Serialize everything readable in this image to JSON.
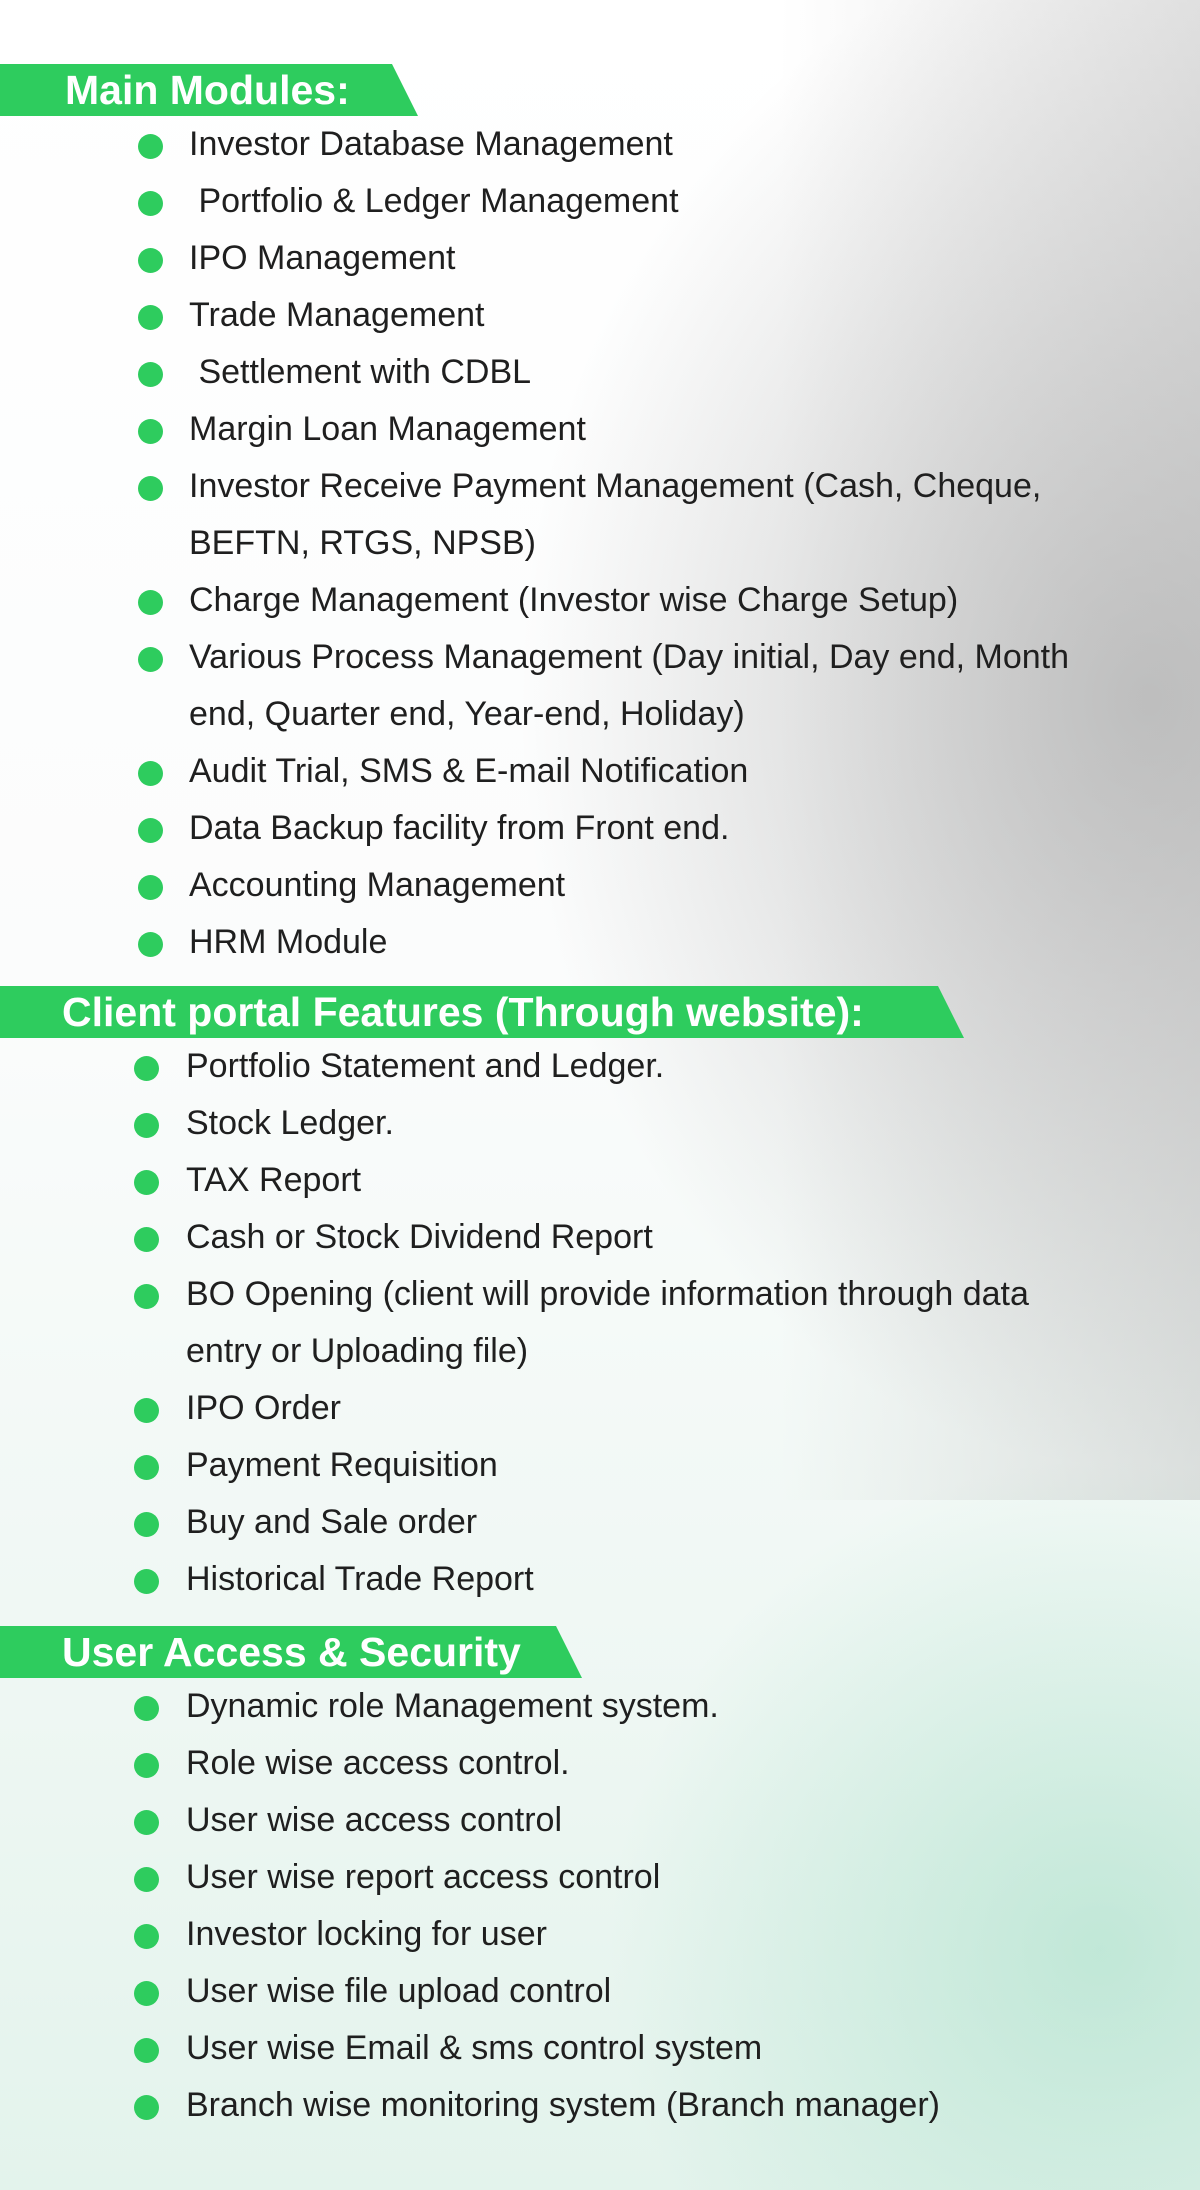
{
  "main_modules": {
    "heading": "Main Modules:",
    "items": [
      "Investor Database Management",
      " Portfolio & Ledger Management",
      "IPO Management",
      "Trade Management",
      " Settlement with CDBL",
      "Margin Loan Management",
      "Investor Receive Payment Management (Cash, Cheque, BEFTN, RTGS, NPSB)",
      "Charge Management (Investor wise Charge Setup)",
      "Various Process Management (Day initial, Day end, Month end, Quarter end, Year-end, Holiday)",
      "Audit Trial, SMS & E-mail Notification",
      "Data Backup facility from Front end.",
      "Accounting Management",
      "HRM Module"
    ]
  },
  "client_portal": {
    "heading": "Client portal Features (Through website):",
    "items": [
      "Portfolio Statement and Ledger.",
      "Stock Ledger.",
      "TAX Report",
      "Cash or Stock Dividend Report",
      "BO Opening (client will provide information through data entry or Uploading file)",
      "IPO Order",
      "Payment Requisition",
      "Buy and Sale order",
      "Historical Trade Report"
    ]
  },
  "user_access": {
    "heading": "User Access & Security",
    "items": [
      "Dynamic role Management system.",
      "Role wise access control.",
      "User wise access control",
      "User wise report access control",
      "Investor locking for user",
      "User wise file upload control",
      "User wise Email & sms control system",
      "Branch wise monitoring system (Branch manager)"
    ]
  }
}
